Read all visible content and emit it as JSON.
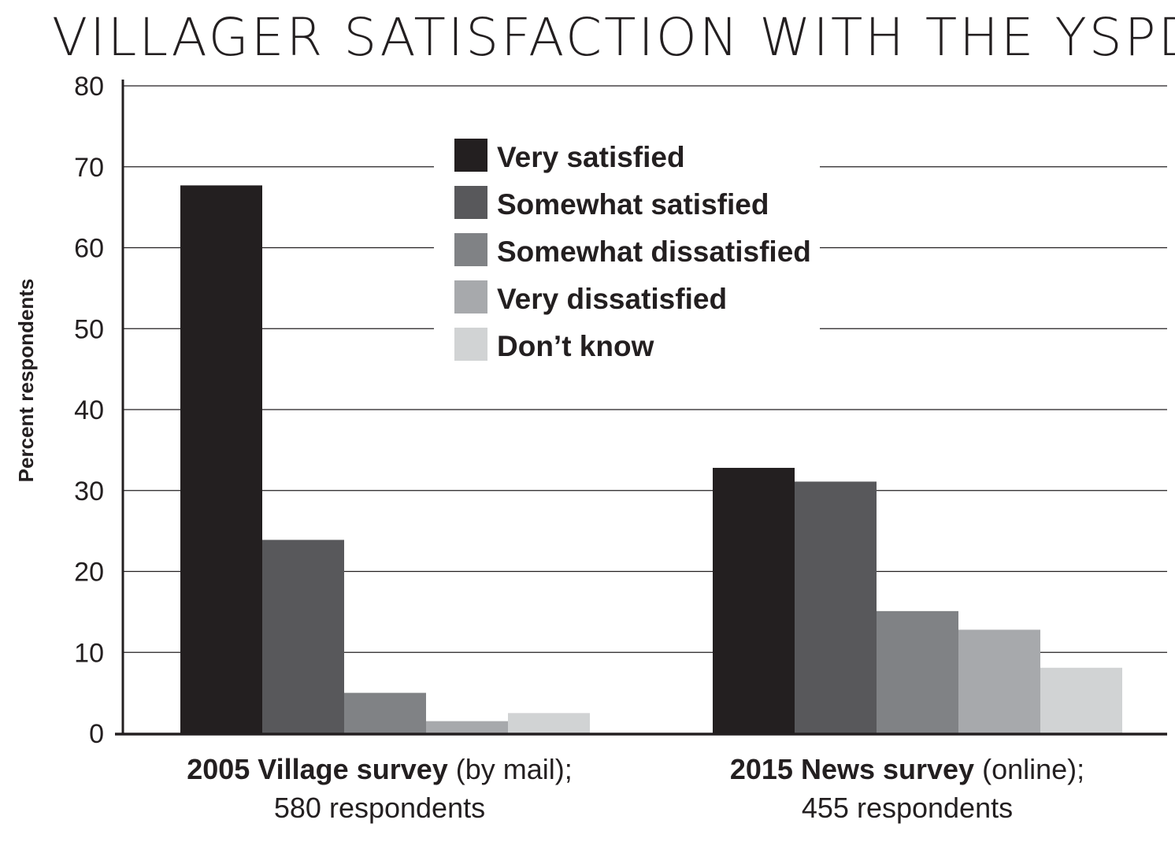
{
  "chart_data": {
    "type": "bar",
    "title": "VILLAGER SATISFACTION WITH THE YSPD",
    "ylabel": "Percent respondents",
    "xlabel": "",
    "ylim": [
      0,
      80
    ],
    "yticks": [
      0,
      10,
      20,
      30,
      40,
      50,
      60,
      70,
      80
    ],
    "grid": true,
    "legend_position": "top-center",
    "categories": [
      {
        "bold": "2005 Village survey",
        "normal": " (by mail);",
        "line2": "580 respondents"
      },
      {
        "bold": "2015 News survey",
        "normal": " (online);",
        "line2": "455 respondents"
      }
    ],
    "series": [
      {
        "name": "Very satisfied",
        "color": "#231f20",
        "values": [
          67.7,
          32.8
        ]
      },
      {
        "name": "Somewhat satisfied",
        "color": "#58585b",
        "values": [
          23.9,
          31.1
        ]
      },
      {
        "name": "Somewhat dissatisfied",
        "color": "#808285",
        "values": [
          5.0,
          15.1
        ]
      },
      {
        "name": "Very dissatisfied",
        "color": "#a7a9ac",
        "values": [
          1.5,
          12.8
        ]
      },
      {
        "name": "Don’t know",
        "color": "#d1d3d4",
        "values": [
          2.5,
          8.1
        ]
      }
    ]
  }
}
